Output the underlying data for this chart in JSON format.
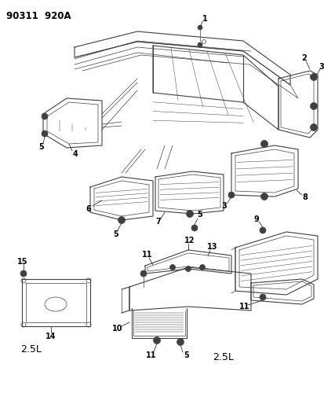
{
  "title": "90311  920A",
  "bg_color": "#ffffff",
  "line_color": "#404040",
  "label_color": "#000000",
  "figsize": [
    4.14,
    5.33
  ],
  "dpi": 100
}
